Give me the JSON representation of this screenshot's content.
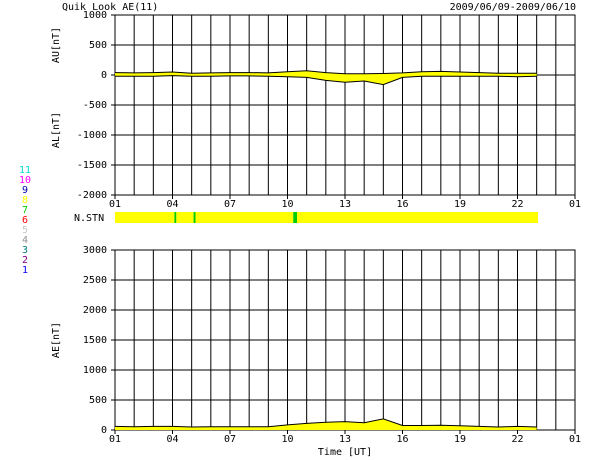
{
  "header": {
    "title": "Quik Look AE(11)",
    "date_range": "2009/06/09-2009/06/10"
  },
  "chart_data": [
    {
      "type": "area",
      "y_labels": [
        "AU[nT]",
        "AL[nT]"
      ],
      "x": [
        0,
        1,
        2,
        3,
        4,
        5,
        6,
        7,
        8,
        9,
        10,
        11,
        12,
        13,
        14,
        15,
        16,
        17,
        18,
        19,
        20,
        21,
        22
      ],
      "xlim": [
        0,
        24
      ],
      "xticks": [
        {
          "value": 0,
          "label": "01"
        },
        {
          "value": 3,
          "label": "04"
        },
        {
          "value": 6,
          "label": "07"
        },
        {
          "value": 9,
          "label": "10"
        },
        {
          "value": 12,
          "label": "13"
        },
        {
          "value": 15,
          "label": "16"
        },
        {
          "value": 18,
          "label": "19"
        },
        {
          "value": 21,
          "label": "22"
        },
        {
          "value": 24,
          "label": "01"
        }
      ],
      "xgrid_step": 1,
      "ylim": [
        -2000,
        1000
      ],
      "yticks": [
        -2000,
        -1500,
        -1000,
        -500,
        0,
        500,
        1000
      ],
      "grid": true,
      "series": [
        {
          "color": "#ffff00",
          "line_color": "#000000",
          "values": [
            40,
            35,
            40,
            50,
            30,
            35,
            40,
            40,
            35,
            55,
            70,
            40,
            20,
            20,
            25,
            35,
            55,
            60,
            50,
            40,
            30,
            30,
            30
          ]
        },
        {
          "color": "#ffff00",
          "line_color": "#000000",
          "values": [
            -20,
            -20,
            -20,
            -10,
            -20,
            -20,
            -15,
            -15,
            -20,
            -30,
            -40,
            -90,
            -120,
            -100,
            -160,
            -40,
            -20,
            -20,
            -20,
            -20,
            -20,
            -30,
            -20
          ]
        }
      ]
    },
    {
      "type": "strip",
      "label": "N.STN",
      "bins": [
        0,
        3.1,
        3.2,
        4.1,
        4.2,
        9.3,
        9.5,
        22.07
      ],
      "values": [
        8,
        7,
        8,
        7,
        8,
        7,
        8
      ],
      "legend": {
        "values": [
          11,
          10,
          9,
          8,
          7,
          6,
          5,
          4,
          3,
          2,
          1
        ],
        "colors": [
          "#00d8d8",
          "#ff00ff",
          "#0000b0",
          "#ffff00",
          "#00cc00",
          "#ff0000",
          "#c8c8c8",
          "#909090",
          "#008080",
          "#800080",
          "#0000ff"
        ]
      }
    },
    {
      "type": "area",
      "y_label": "AE[nT]",
      "x_label": "Time [UT]",
      "x": [
        0,
        1,
        2,
        3,
        4,
        5,
        6,
        7,
        8,
        9,
        10,
        11,
        12,
        13,
        14,
        15,
        16,
        17,
        18,
        19,
        20,
        21,
        22
      ],
      "xlim": [
        0,
        24
      ],
      "xticks": [
        {
          "value": 0,
          "label": "01"
        },
        {
          "value": 3,
          "label": "04"
        },
        {
          "value": 6,
          "label": "07"
        },
        {
          "value": 9,
          "label": "10"
        },
        {
          "value": 12,
          "label": "13"
        },
        {
          "value": 15,
          "label": "16"
        },
        {
          "value": 18,
          "label": "19"
        },
        {
          "value": 21,
          "label": "22"
        },
        {
          "value": 24,
          "label": "01"
        }
      ],
      "xgrid_step": 1,
      "ylim": [
        0,
        3000
      ],
      "yticks": [
        0,
        500,
        1000,
        1500,
        2000,
        2500,
        3000
      ],
      "grid": true,
      "series": [
        {
          "color": "#ffff00",
          "line_color": "#000000",
          "values": [
            60,
            55,
            60,
            60,
            50,
            55,
            55,
            55,
            55,
            85,
            110,
            130,
            140,
            120,
            185,
            75,
            75,
            80,
            70,
            60,
            50,
            60,
            50
          ]
        }
      ]
    }
  ]
}
